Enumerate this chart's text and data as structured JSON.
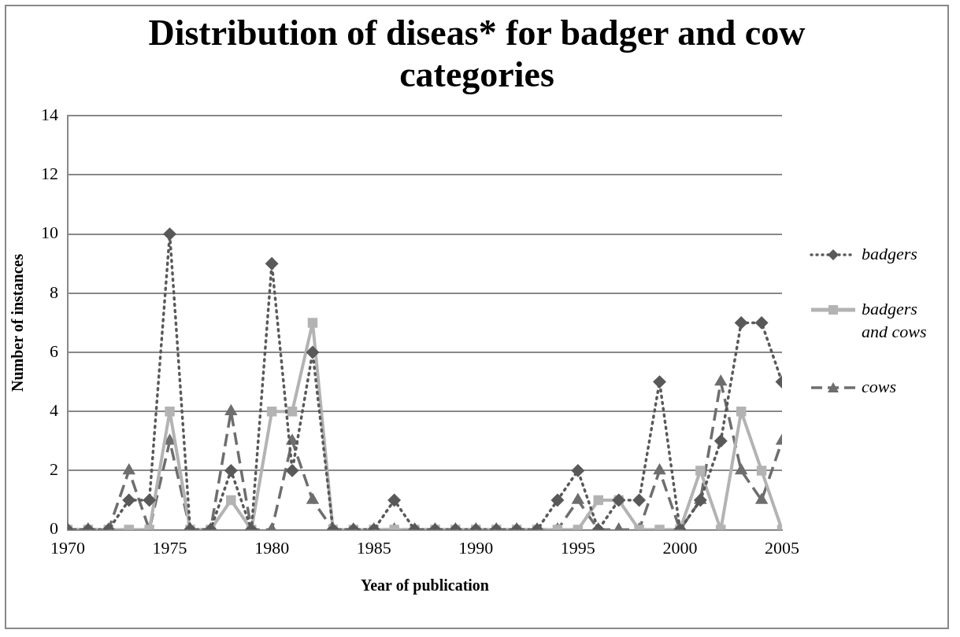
{
  "chart_data": {
    "type": "line",
    "title": "Distribution of diseas* for badger and cow categories",
    "xlabel": "Year of publication",
    "ylabel": "Number of instances",
    "x": [
      1970,
      1971,
      1972,
      1973,
      1974,
      1975,
      1976,
      1977,
      1978,
      1979,
      1980,
      1981,
      1982,
      1983,
      1984,
      1985,
      1986,
      1987,
      1988,
      1989,
      1990,
      1991,
      1992,
      1993,
      1994,
      1995,
      1996,
      1997,
      1998,
      1999,
      2000,
      2001,
      2002,
      2003,
      2004,
      2005
    ],
    "series": [
      {
        "name": "badgers",
        "color": "#595959",
        "marker": "diamond",
        "line_style": "dotted",
        "values": [
          0,
          0,
          0,
          1,
          1,
          10,
          0,
          0,
          2,
          0,
          9,
          2,
          6,
          0,
          0,
          0,
          1,
          0,
          0,
          0,
          0,
          0,
          0,
          0,
          1,
          2,
          0,
          1,
          1,
          5,
          0,
          1,
          3,
          7,
          7,
          5
        ]
      },
      {
        "name": "badgers and cows",
        "color": "#b3b3b3",
        "marker": "square",
        "line_style": "solid",
        "values": [
          0,
          0,
          0,
          0,
          0,
          4,
          0,
          0,
          1,
          0,
          4,
          4,
          7,
          0,
          0,
          0,
          0,
          0,
          0,
          0,
          0,
          0,
          0,
          0,
          0,
          0,
          1,
          1,
          0,
          0,
          0,
          2,
          0,
          4,
          2,
          0
        ]
      },
      {
        "name": "cows",
        "color": "#6e6e6e",
        "marker": "triangle",
        "line_style": "dashed",
        "values": [
          0,
          0,
          0,
          2,
          0,
          3,
          0,
          0,
          4,
          0,
          0,
          3,
          1,
          0,
          0,
          0,
          0,
          0,
          0,
          0,
          0,
          0,
          0,
          0,
          0,
          1,
          0,
          0,
          0,
          2,
          0,
          1,
          5,
          2,
          1,
          3
        ]
      }
    ],
    "xlim": [
      1970,
      2005
    ],
    "xticks": [
      1970,
      1975,
      1980,
      1985,
      1990,
      1995,
      2000,
      2005
    ],
    "ylim": [
      0,
      14
    ],
    "yticks": [
      0,
      2,
      4,
      6,
      8,
      10,
      12,
      14
    ],
    "grid": "y",
    "legend": "right"
  }
}
